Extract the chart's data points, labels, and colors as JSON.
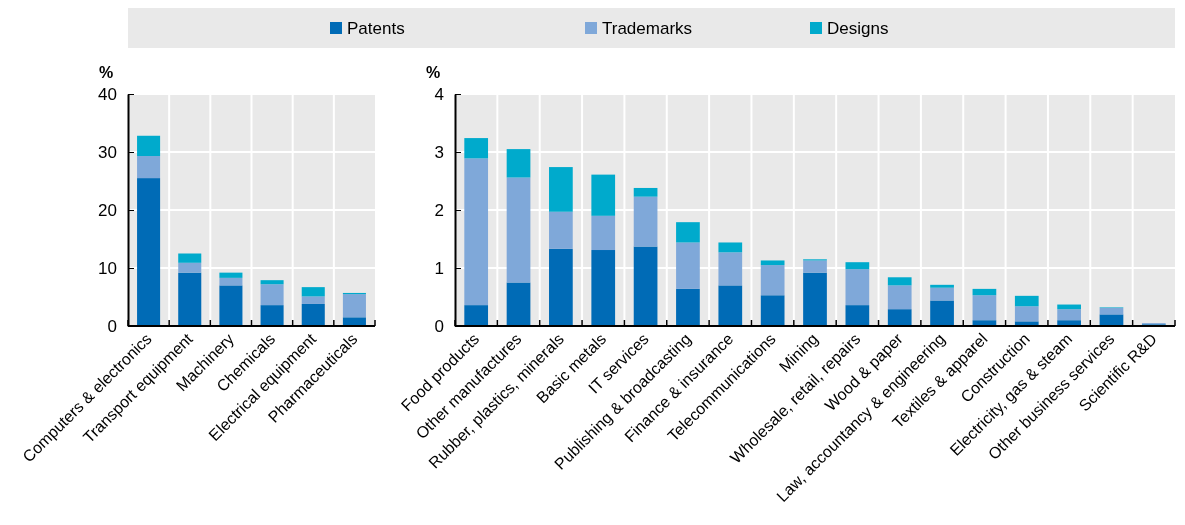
{
  "chart_data": [
    {
      "type": "bar",
      "stacked": true,
      "ylabel": "%",
      "ylim": [
        0,
        40
      ],
      "yticks": [
        0,
        10,
        20,
        30,
        40
      ],
      "grid": true,
      "legend": "top",
      "categories": [
        "Computers & electronics",
        "Transport equipment",
        "Machinery",
        "Chemicals",
        "Electrical equipment",
        "Pharmaceuticals"
      ],
      "series": [
        {
          "name": "Patents",
          "color": "#006bb6",
          "values": [
            25.5,
            9.2,
            7.0,
            3.6,
            3.8,
            1.5
          ]
        },
        {
          "name": "Trademarks",
          "color": "#7fa8d9",
          "values": [
            3.8,
            1.7,
            1.3,
            3.6,
            1.3,
            4.0
          ]
        },
        {
          "name": "Designs",
          "color": "#00aacc",
          "values": [
            3.5,
            1.6,
            0.9,
            0.7,
            1.6,
            0.2
          ]
        }
      ]
    },
    {
      "type": "bar",
      "stacked": true,
      "ylabel": "%",
      "ylim": [
        0,
        4
      ],
      "yticks": [
        0,
        1,
        2,
        3,
        4
      ],
      "grid": true,
      "categories": [
        "Food products",
        "Other manufactures",
        "Rubber, plastics, minerals",
        "Basic metals",
        "IT services",
        "Publishing & broadcasting",
        "Finance & insurance",
        "Telecommunications",
        "Mining",
        "Wholesale, retail, repairs",
        "Wood & paper",
        "Law, accountancy & engineering",
        "Textiles & apparel",
        "Construction",
        "Electricity, gas & steam",
        "Other business services",
        "Scientific R&D"
      ],
      "series": [
        {
          "color": "#006bb6",
          "values": [
            0.36,
            0.75,
            1.33,
            1.31,
            1.37,
            0.64,
            0.7,
            0.53,
            0.92,
            0.36,
            0.29,
            0.44,
            0.1,
            0.08,
            0.1,
            0.2,
            0.03
          ]
        },
        {
          "color": "#7fa8d9",
          "values": [
            2.53,
            1.81,
            0.64,
            0.59,
            0.86,
            0.8,
            0.57,
            0.52,
            0.21,
            0.62,
            0.41,
            0.22,
            0.43,
            0.26,
            0.19,
            0.11,
            0.02
          ]
        },
        {
          "color": "#00aacc",
          "values": [
            0.35,
            0.49,
            0.77,
            0.71,
            0.15,
            0.35,
            0.17,
            0.08,
            0.02,
            0.12,
            0.14,
            0.05,
            0.11,
            0.18,
            0.08,
            0.01,
            0
          ]
        }
      ]
    }
  ]
}
